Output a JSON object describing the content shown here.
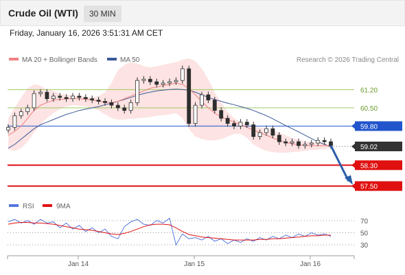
{
  "header": {
    "title": "Crude Oil (WTI)",
    "interval": "30 MIN"
  },
  "timestamp": "Friday, January 16, 2026 3:51:31 AM CET",
  "credit": "Research © 2026 Trading Central",
  "colors": {
    "candle": "#2e2e2e",
    "ma20": "#f08080",
    "bollinger_fill": "#fde0e0",
    "ma50": "#3b5998",
    "pivot": "#2255cc",
    "support": "#e01010",
    "resistance": "#9ccc65",
    "rsi": "#5577dd",
    "rsi_ma": "#e01010",
    "arrow": "#2a5fa8"
  },
  "chart_data": [
    {
      "type": "candlestick",
      "legend": [
        {
          "name": "MA 20 + Bollinger Bands",
          "color": "#f08080"
        },
        {
          "name": "MA 50",
          "color": "#3b5998"
        }
      ],
      "x_ticks": [
        "Jan 14",
        "Jan 15",
        "Jan 16"
      ],
      "ylim": [
        57.2,
        62.0
      ],
      "levels": [
        {
          "value": 61.2,
          "label": "61.20",
          "kind": "resistance"
        },
        {
          "value": 60.5,
          "label": "60.50",
          "kind": "resistance"
        },
        {
          "value": 59.8,
          "label": "59.80",
          "kind": "pivot"
        },
        {
          "value": 59.02,
          "label": "59.02",
          "kind": "last"
        },
        {
          "value": 58.3,
          "label": "58.30",
          "kind": "support"
        },
        {
          "value": 57.5,
          "label": "57.50",
          "kind": "support"
        }
      ],
      "close_path": [
        59.75,
        60.2,
        60.35,
        60.5,
        61.05,
        61.1,
        60.85,
        60.95,
        60.9,
        60.85,
        60.95,
        60.9,
        60.85,
        60.8,
        60.75,
        60.7,
        60.6,
        60.5,
        60.4,
        60.7,
        61.55,
        61.6,
        61.5,
        61.4,
        61.45,
        61.5,
        61.55,
        62.0,
        59.9,
        60.6,
        61.0,
        60.8,
        60.4,
        60.1,
        59.9,
        59.8,
        59.95,
        59.85,
        59.4,
        59.55,
        59.7,
        59.45,
        59.2,
        59.15,
        59.2,
        59.05,
        59.1,
        59.15,
        59.25,
        59.2,
        59.05
      ],
      "ma20": [
        59.45,
        59.6,
        59.8,
        60.1,
        60.4,
        60.6,
        60.7,
        60.8,
        60.82,
        60.84,
        60.86,
        60.85,
        60.83,
        60.8,
        60.75,
        60.72,
        60.7,
        60.75,
        60.85,
        60.95,
        61.05,
        61.15,
        61.25,
        61.3,
        61.35,
        61.4,
        61.45,
        61.4,
        61.25,
        61.0,
        60.75,
        60.5,
        60.3,
        60.15,
        60.05,
        59.95,
        59.85,
        59.75,
        59.65,
        59.55,
        59.45,
        59.35,
        59.25,
        59.18,
        59.12,
        59.08,
        59.06,
        59.05,
        59.05,
        59.05,
        59.05
      ],
      "bb_upper": [
        60.1,
        60.5,
        60.9,
        61.25,
        61.4,
        61.35,
        61.2,
        61.15,
        61.05,
        61.0,
        60.98,
        60.95,
        60.92,
        60.9,
        60.95,
        61.1,
        61.45,
        61.95,
        62.15,
        62.25,
        62.2,
        62.1,
        62.05,
        62.1,
        62.15,
        62.2,
        62.25,
        62.35,
        62.4,
        62.3,
        62.0,
        61.6,
        61.1,
        60.7,
        60.35,
        60.1,
        59.95,
        59.85,
        59.8,
        59.75,
        59.7,
        59.62,
        59.55,
        59.45,
        59.35,
        59.28,
        59.22,
        59.2,
        59.18,
        59.15,
        59.1
      ],
      "bb_lower": [
        58.9,
        58.85,
        58.95,
        59.2,
        59.55,
        59.85,
        60.1,
        60.3,
        60.45,
        60.55,
        60.6,
        60.58,
        60.55,
        60.5,
        60.4,
        60.25,
        60.1,
        60.05,
        60.05,
        60.08,
        60.1,
        60.12,
        60.15,
        60.2,
        60.22,
        60.25,
        60.3,
        60.1,
        59.7,
        59.4,
        59.3,
        59.25,
        59.25,
        59.3,
        59.4,
        59.5,
        59.5,
        59.35,
        59.1,
        58.95,
        58.85,
        58.8,
        58.78,
        58.78,
        58.8,
        58.82,
        58.85,
        58.88,
        58.9,
        58.92,
        58.95
      ],
      "ma50": [
        58.95,
        59.1,
        59.3,
        59.5,
        59.7,
        59.85,
        59.95,
        60.05,
        60.15,
        60.25,
        60.32,
        60.4,
        60.45,
        60.5,
        60.55,
        60.62,
        60.68,
        60.75,
        60.82,
        60.9,
        60.98,
        61.05,
        61.1,
        61.15,
        61.18,
        61.2,
        61.22,
        61.2,
        61.18,
        61.1,
        61.0,
        60.9,
        60.82,
        60.75,
        60.68,
        60.62,
        60.55,
        60.48,
        60.4,
        60.3,
        60.2,
        60.08,
        59.95,
        59.82,
        59.7,
        59.58,
        59.45,
        59.32,
        59.2,
        59.1,
        59.0
      ]
    },
    {
      "type": "line",
      "legend": [
        {
          "name": "RSI",
          "color": "#5577dd"
        },
        {
          "name": "9MA",
          "color": "#e01010"
        }
      ],
      "y_ticks": [
        70,
        50,
        30
      ],
      "ylim": [
        20,
        80
      ],
      "rsi": [
        68,
        72,
        66,
        70,
        64,
        72,
        66,
        68,
        58,
        66,
        56,
        62,
        52,
        58,
        50,
        56,
        44,
        40,
        60,
        68,
        72,
        64,
        62,
        70,
        66,
        74,
        30,
        48,
        40,
        42,
        38,
        44,
        36,
        40,
        32,
        38,
        34,
        40,
        36,
        42,
        38,
        44,
        40,
        46,
        42,
        48,
        44,
        50,
        46,
        48,
        44
      ],
      "rsi_ma": [
        64,
        66,
        67,
        67,
        66,
        66,
        65,
        64,
        62,
        60,
        58,
        56,
        55,
        54,
        52,
        50,
        48,
        47,
        49,
        52,
        56,
        60,
        63,
        64,
        64,
        63,
        58,
        52,
        47,
        45,
        43,
        42,
        41,
        40,
        39,
        38,
        38,
        38,
        38,
        39,
        39,
        40,
        40,
        41,
        42,
        43,
        44,
        45,
        45,
        46,
        46
      ]
    }
  ]
}
